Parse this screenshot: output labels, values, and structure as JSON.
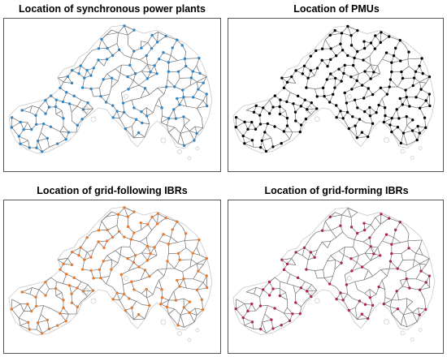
{
  "panels": [
    {
      "id": "sync",
      "title": "Location of synchronous power plants",
      "marker_color": "#2e86c8",
      "marker_density": 0.55,
      "seed": 11
    },
    {
      "id": "pmu",
      "title": "Location of PMUs",
      "marker_color": "#000000",
      "marker_density": 0.85,
      "seed": 23
    },
    {
      "id": "gfl",
      "title": "Location of grid-following IBRs",
      "marker_color": "#e87a2e",
      "marker_density": 0.55,
      "seed": 37
    },
    {
      "id": "gfm",
      "title": "Location of grid-forming IBRs",
      "marker_color": "#b0245a",
      "marker_density": 0.35,
      "seed": 53
    }
  ],
  "colors": {
    "line": "#6e6e6e",
    "coast": "#c8c8c8",
    "frame": "#555555"
  }
}
